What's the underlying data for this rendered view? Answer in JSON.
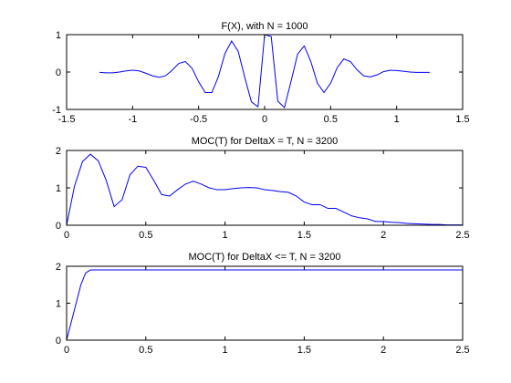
{
  "chart_data": [
    {
      "type": "line",
      "title": "F(X), with N = 1000",
      "xlim": [
        -1.5,
        1.5
      ],
      "ylim": [
        -1,
        1
      ],
      "xticks": [
        "-1.5",
        "-1",
        "-0.5",
        "0",
        "0.5",
        "1",
        "1.5"
      ],
      "yticks": [
        "-1",
        "0",
        "1"
      ],
      "series": [
        {
          "color": "#0000ff",
          "x": [
            -1.25,
            -1.2,
            -1.15,
            -1.1,
            -1.05,
            -1.0,
            -0.95,
            -0.9,
            -0.85,
            -0.8,
            -0.75,
            -0.7,
            -0.65,
            -0.6,
            -0.55,
            -0.5,
            -0.45,
            -0.4,
            -0.35,
            -0.3,
            -0.25,
            -0.2,
            -0.15,
            -0.1,
            -0.05,
            0.0,
            0.05,
            0.1,
            0.15,
            0.2,
            0.25,
            0.3,
            0.35,
            0.4,
            0.45,
            0.5,
            0.55,
            0.6,
            0.65,
            0.7,
            0.75,
            0.8,
            0.85,
            0.9,
            0.95,
            1.0,
            1.05,
            1.1,
            1.15,
            1.2,
            1.25
          ],
          "y": [
            -0.01,
            -0.02,
            -0.02,
            0.0,
            0.03,
            0.05,
            0.03,
            -0.03,
            -0.1,
            -0.14,
            -0.1,
            0.05,
            0.23,
            0.28,
            0.1,
            -0.26,
            -0.55,
            -0.55,
            -0.12,
            0.5,
            0.83,
            0.55,
            -0.15,
            -0.8,
            -0.93,
            1.0,
            0.95,
            -0.78,
            -0.95,
            -0.25,
            0.48,
            0.7,
            0.28,
            -0.3,
            -0.55,
            -0.3,
            0.12,
            0.35,
            0.28,
            0.06,
            -0.1,
            -0.13,
            -0.08,
            0.01,
            0.05,
            0.04,
            0.02,
            0.0,
            -0.01,
            -0.01,
            -0.01
          ]
        }
      ]
    },
    {
      "type": "line",
      "title": "MOC(T) for DeltaX = T, N = 3200",
      "xlim": [
        0,
        2.5
      ],
      "ylim": [
        0,
        2
      ],
      "xticks": [
        "0",
        "0.5",
        "1",
        "1.5",
        "2",
        "2.5"
      ],
      "yticks": [
        "0",
        "1",
        "2"
      ],
      "series": [
        {
          "color": "#0000ff",
          "x": [
            0.0,
            0.05,
            0.1,
            0.15,
            0.2,
            0.25,
            0.3,
            0.35,
            0.4,
            0.45,
            0.5,
            0.55,
            0.6,
            0.65,
            0.7,
            0.75,
            0.8,
            0.85,
            0.9,
            0.95,
            1.0,
            1.05,
            1.1,
            1.15,
            1.2,
            1.25,
            1.3,
            1.35,
            1.4,
            1.45,
            1.5,
            1.55,
            1.6,
            1.65,
            1.7,
            1.75,
            1.8,
            1.85,
            1.9,
            1.95,
            2.0,
            2.05,
            2.1,
            2.15,
            2.2,
            2.25,
            2.3,
            2.35,
            2.4,
            2.45,
            2.5
          ],
          "y": [
            0.0,
            1.05,
            1.7,
            1.9,
            1.72,
            1.2,
            0.5,
            0.68,
            1.35,
            1.58,
            1.55,
            1.2,
            0.82,
            0.78,
            0.95,
            1.1,
            1.18,
            1.1,
            1.0,
            0.95,
            0.95,
            0.98,
            1.0,
            1.01,
            1.0,
            0.95,
            0.93,
            0.9,
            0.88,
            0.78,
            0.62,
            0.55,
            0.55,
            0.45,
            0.45,
            0.35,
            0.25,
            0.2,
            0.17,
            0.1,
            0.1,
            0.08,
            0.07,
            0.05,
            0.04,
            0.03,
            0.02,
            0.02,
            0.01,
            0.01,
            0.01
          ]
        }
      ]
    },
    {
      "type": "line",
      "title": "MOC(T) for DeltaX <= T, N = 3200",
      "xlim": [
        0,
        2.5
      ],
      "ylim": [
        0,
        2
      ],
      "xticks": [
        "0",
        "0.5",
        "1",
        "1.5",
        "2",
        "2.5"
      ],
      "yticks": [
        "0",
        "1",
        "2"
      ],
      "series": [
        {
          "color": "#0000ff",
          "x": [
            0.0,
            0.03,
            0.06,
            0.09,
            0.12,
            0.15,
            0.18,
            0.5,
            1.0,
            1.5,
            2.0,
            2.5
          ],
          "y": [
            0.0,
            0.5,
            1.0,
            1.5,
            1.82,
            1.9,
            1.9,
            1.9,
            1.9,
            1.9,
            1.9,
            1.9
          ]
        }
      ]
    }
  ]
}
